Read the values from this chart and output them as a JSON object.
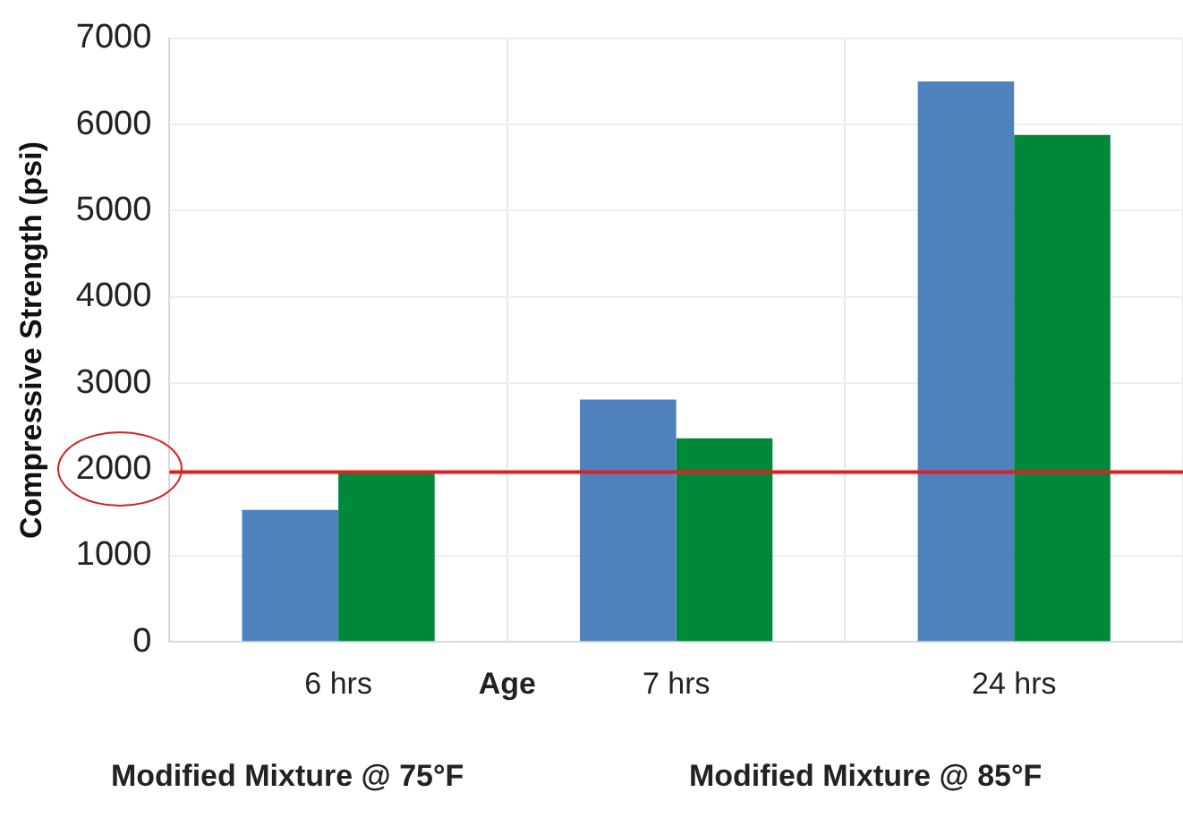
{
  "chart_data": {
    "type": "bar",
    "ylabel": "Compressive Strength (psi)",
    "xlabel": "Age",
    "categories": [
      "6 hrs",
      "7 hrs",
      "24 hrs"
    ],
    "series": [
      {
        "color": "#4f81bd",
        "values": [
          1530,
          2810,
          6500
        ]
      },
      {
        "color": "#00883a",
        "values": [
          1960,
          2360,
          5880
        ]
      }
    ],
    "ylim": [
      0,
      7000
    ],
    "yticks": [
      0,
      1000,
      2000,
      3000,
      4000,
      5000,
      6000,
      7000
    ],
    "grid": true,
    "ref_lines": [
      {
        "axis": "y",
        "value": 1970,
        "color": "#e02020"
      }
    ],
    "annotations": [
      "Modified Mixture @ 75°F",
      "Modified Mixture @ 85°F"
    ]
  }
}
